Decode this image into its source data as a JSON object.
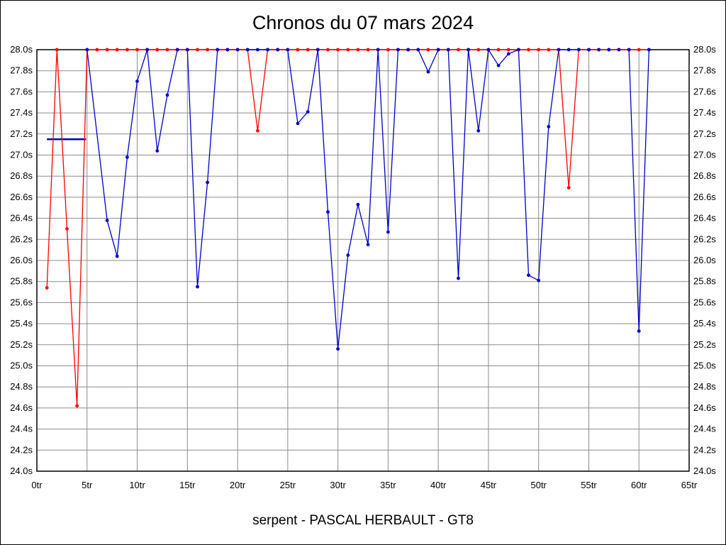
{
  "title": "Chronos du 07 mars 2024",
  "footer": "serpent - PASCAL HERBAULT - GT8",
  "colors": {
    "red_series": "#ff0000",
    "blue_series": "#0000c8",
    "grid": "#8c8c8c",
    "axis": "#000000",
    "background": "#ffffff"
  },
  "chart_data": {
    "type": "line",
    "title": "Chronos du 07 mars 2024",
    "subtitle": "serpent - PASCAL HERBAULT - GT8",
    "xlabel": "",
    "ylabel": "",
    "xlim": [
      0,
      65
    ],
    "ylim": [
      24.0,
      28.0
    ],
    "x_suffix": "tr",
    "y_suffix": "s",
    "grid": true,
    "legend": "none",
    "x_ticks": [
      0,
      5,
      10,
      15,
      20,
      25,
      30,
      35,
      40,
      45,
      50,
      55,
      60,
      65
    ],
    "y_ticks": [
      28.0,
      27.8,
      27.6,
      27.4,
      27.2,
      27.0,
      26.8,
      26.6,
      26.4,
      26.2,
      26.0,
      25.8,
      25.6,
      25.4,
      25.2,
      25.0,
      24.8,
      24.6,
      24.4,
      24.2,
      24.0
    ],
    "clip_value": 28.0,
    "series": [
      {
        "name": "red-series",
        "color": "#ff0000",
        "points": [
          [
            1,
            25.74
          ],
          [
            2,
            28.0
          ],
          [
            3,
            26.3
          ],
          [
            4,
            24.62
          ],
          [
            5,
            28.0
          ],
          [
            6,
            28.0
          ],
          [
            7,
            28.0
          ],
          [
            8,
            28.0
          ],
          [
            9,
            28.0
          ],
          [
            10,
            28.0
          ],
          [
            11,
            28.0
          ],
          [
            12,
            28.0
          ],
          [
            13,
            28.0
          ],
          [
            14,
            28.0
          ],
          [
            15,
            28.0
          ],
          [
            16,
            28.0
          ],
          [
            17,
            28.0
          ],
          [
            18,
            28.0
          ],
          [
            19,
            28.0
          ],
          [
            20,
            28.0
          ],
          [
            21,
            28.0
          ],
          [
            22,
            27.23
          ],
          [
            23,
            28.0
          ],
          [
            24,
            28.0
          ],
          [
            25,
            28.0
          ],
          [
            26,
            28.0
          ],
          [
            27,
            28.0
          ],
          [
            28,
            28.0
          ],
          [
            29,
            28.0
          ],
          [
            30,
            28.0
          ],
          [
            31,
            28.0
          ],
          [
            32,
            28.0
          ],
          [
            33,
            28.0
          ],
          [
            34,
            28.0
          ],
          [
            35,
            28.0
          ],
          [
            36,
            28.0
          ],
          [
            37,
            28.0
          ],
          [
            38,
            28.0
          ],
          [
            39,
            28.0
          ],
          [
            40,
            28.0
          ],
          [
            41,
            28.0
          ],
          [
            42,
            28.0
          ],
          [
            43,
            28.0
          ],
          [
            44,
            28.0
          ],
          [
            45,
            28.0
          ],
          [
            46,
            28.0
          ],
          [
            47,
            28.0
          ],
          [
            48,
            28.0
          ],
          [
            49,
            28.0
          ],
          [
            50,
            28.0
          ],
          [
            51,
            28.0
          ],
          [
            52,
            28.0
          ],
          [
            53,
            26.69
          ],
          [
            54,
            28.0
          ],
          [
            55,
            28.0
          ],
          [
            56,
            28.0
          ],
          [
            57,
            28.0
          ],
          [
            58,
            28.0
          ],
          [
            59,
            28.0
          ],
          [
            60,
            28.0
          ],
          [
            61,
            28.0
          ]
        ]
      },
      {
        "name": "blue-series",
        "color": "#0000c8",
        "points": [
          [
            5,
            28.0
          ],
          [
            7,
            26.38
          ],
          [
            8,
            26.04
          ],
          [
            9,
            26.98
          ],
          [
            10,
            27.7
          ],
          [
            11,
            28.0
          ],
          [
            12,
            27.04
          ],
          [
            13,
            27.57
          ],
          [
            14,
            28.0
          ],
          [
            15,
            28.0
          ],
          [
            16,
            25.75
          ],
          [
            17,
            26.74
          ],
          [
            18,
            28.0
          ],
          [
            19,
            28.0
          ],
          [
            20,
            28.0
          ],
          [
            21,
            28.0
          ],
          [
            22,
            28.0
          ],
          [
            23,
            28.0
          ],
          [
            24,
            28.0
          ],
          [
            25,
            28.0
          ],
          [
            26,
            27.3
          ],
          [
            27,
            27.41
          ],
          [
            28,
            28.0
          ],
          [
            29,
            26.46
          ],
          [
            30,
            25.16
          ],
          [
            31,
            26.05
          ],
          [
            32,
            26.53
          ],
          [
            33,
            26.15
          ],
          [
            34,
            28.0
          ],
          [
            35,
            26.27
          ],
          [
            36,
            28.0
          ],
          [
            37,
            28.0
          ],
          [
            38,
            28.0
          ],
          [
            39,
            27.79
          ],
          [
            40,
            28.0
          ],
          [
            41,
            28.0
          ],
          [
            42,
            25.83
          ],
          [
            43,
            28.0
          ],
          [
            44,
            27.23
          ],
          [
            45,
            28.0
          ],
          [
            46,
            27.85
          ],
          [
            47,
            27.96
          ],
          [
            48,
            28.0
          ],
          [
            49,
            25.86
          ],
          [
            50,
            25.81
          ],
          [
            51,
            27.27
          ],
          [
            52,
            28.0
          ],
          [
            53,
            28.0
          ],
          [
            54,
            28.0
          ],
          [
            55,
            28.0
          ],
          [
            56,
            28.0
          ],
          [
            57,
            28.0
          ],
          [
            58,
            28.0
          ],
          [
            59,
            28.0
          ],
          [
            60,
            25.33
          ],
          [
            61,
            28.0
          ]
        ]
      }
    ],
    "reference_line": {
      "name": "blue-average-segment",
      "color": "#0000c8",
      "y": 27.15,
      "x_start": 1,
      "x_end": 4.9
    }
  }
}
